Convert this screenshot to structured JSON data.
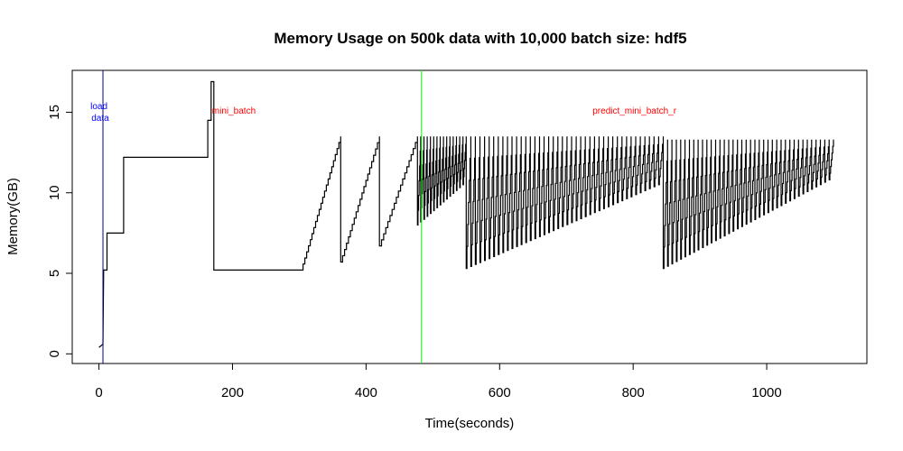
{
  "chart_data": {
    "type": "line",
    "title": "Memory Usage on 500k data with 10,000 batch size: hdf5",
    "xlabel": "Time(seconds)",
    "ylabel": "Memory(GB)",
    "xlim": [
      -40,
      1150
    ],
    "ylim": [
      -0.6,
      17.6
    ],
    "x_ticks": [
      0,
      200,
      400,
      600,
      800,
      1000
    ],
    "y_ticks": [
      0,
      5,
      10,
      15
    ],
    "grid": false,
    "colors": {
      "series": "#000000",
      "load_line": "#00008b",
      "load_text": "#0000ff",
      "predict_line": "#00ff00",
      "annotation_text": "#ff0000"
    },
    "vlines": [
      {
        "x": 6,
        "color": "#00008b"
      },
      {
        "x": 483,
        "color": "#00ff00"
      }
    ],
    "annotations": [
      {
        "text_lines": [
          "load",
          " data"
        ],
        "x": 0,
        "y": 15.2,
        "color": "#0000ff"
      },
      {
        "text_lines": [
          "mini_batch"
        ],
        "x": 202,
        "y": 14.9,
        "color": "#ff0000"
      },
      {
        "text_lines": [
          "predict_mini_batch_r"
        ],
        "x": 802,
        "y": 14.9,
        "color": "#ff0000"
      }
    ],
    "steps": [
      [
        0,
        0.4
      ],
      [
        3,
        0.5
      ],
      [
        6,
        0.6
      ],
      [
        7,
        5.2
      ],
      [
        12,
        5.2
      ],
      [
        12,
        7.5
      ],
      [
        37,
        7.5
      ],
      [
        37,
        12.2
      ],
      [
        163,
        12.2
      ],
      [
        163,
        14.5
      ],
      [
        168,
        14.5
      ],
      [
        168,
        16.9
      ],
      [
        172,
        16.9
      ],
      [
        172,
        5.2
      ],
      [
        303,
        5.2
      ]
    ],
    "rise_segments": [
      {
        "x0": 303,
        "x1": 362,
        "y0": 5.2,
        "y1": 13.5,
        "steps": 22
      },
      {
        "x0": 362,
        "x1": 420,
        "y0": 5.7,
        "y1": 13.5,
        "steps": 20
      },
      {
        "x0": 420,
        "x1": 477,
        "y0": 6.7,
        "y1": 13.5,
        "steps": 18
      }
    ],
    "saw_regions": [
      {
        "x0": 477,
        "x1": 550,
        "n": 15,
        "low_start": 8.0,
        "low_end": 10.5,
        "high": 13.5
      },
      {
        "x0": 550,
        "x1": 845,
        "n": 43,
        "low_start": 5.3,
        "low_end": 10.5,
        "high": 13.5
      },
      {
        "x0": 845,
        "x1": 1100,
        "n": 39,
        "low_start": 5.3,
        "low_end": 10.8,
        "high": 13.3
      }
    ]
  }
}
